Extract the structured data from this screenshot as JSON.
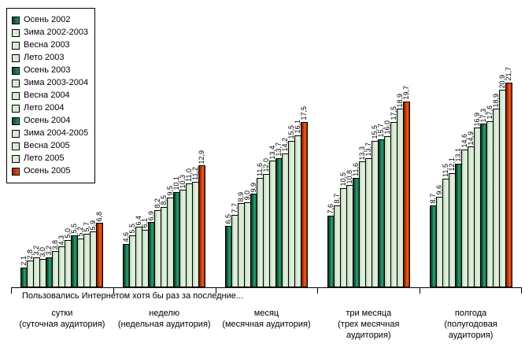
{
  "chart_data": {
    "type": "bar",
    "title": "",
    "axis_note": "Пользовались Интернетом хотя бы раз за последние...",
    "legend_position": "top-left",
    "grid": false,
    "ylim": [
      0,
      22
    ],
    "value_label_style": "rotated 90°, decimal comma",
    "categories": [
      {
        "label": "сутки",
        "sublabel": "(суточная аудитория)"
      },
      {
        "label": "неделю",
        "sublabel": "(недельная аудитория)"
      },
      {
        "label": "месяц",
        "sublabel": "(месячная аудитория)"
      },
      {
        "label": "три месяца",
        "sublabel": "(трех месячная аудитория)"
      },
      {
        "label": "полгода",
        "sublabel": "(полугодовая аудитория)"
      }
    ],
    "series": [
      {
        "name": "Осень 2002",
        "color": "dark",
        "values": [
          2.1,
          4.6,
          6.5,
          7.6,
          8.7
        ]
      },
      {
        "name": "Зима 2002-2003",
        "color": "light",
        "values": [
          2.8,
          5.5,
          7.7,
          8.7,
          9.6
        ]
      },
      {
        "name": "Весна 2003",
        "color": "light",
        "values": [
          3.2,
          6.4,
          8.9,
          10.5,
          11.5
        ]
      },
      {
        "name": "Лето 2003",
        "color": "light",
        "values": [
          3.0,
          6.1,
          9.0,
          10.8,
          12.1
        ]
      },
      {
        "name": "Осень 2003",
        "color": "dark",
        "values": [
          3.2,
          6.9,
          9.9,
          11.6,
          13.1
        ]
      },
      {
        "name": "Зима 2003-2004",
        "color": "light",
        "values": [
          3.8,
          8.2,
          11.6,
          13.3,
          14.6
        ]
      },
      {
        "name": "Весна 2004",
        "color": "light",
        "values": [
          4.3,
          8.5,
          12.0,
          13.7,
          14.9
        ]
      },
      {
        "name": "Лето 2004",
        "color": "light",
        "values": [
          5.0,
          9.5,
          13.4,
          15.5,
          16.9
        ]
      },
      {
        "name": "Осень 2004",
        "color": "dark",
        "values": [
          5.5,
          10.1,
          13.7,
          15.7,
          17.3
        ]
      },
      {
        "name": "Зима 2004-2005",
        "color": "light",
        "values": [
          5.2,
          10.3,
          14.2,
          16.0,
          17.6
        ]
      },
      {
        "name": "Весна 2005",
        "color": "light",
        "values": [
          5.7,
          11.0,
          15.5,
          17.5,
          18.9
        ]
      },
      {
        "name": "Лето 2005",
        "color": "light",
        "values": [
          5.9,
          11.2,
          16.1,
          18.9,
          20.9
        ]
      },
      {
        "name": "Осень 2005",
        "color": "red",
        "values": [
          6.8,
          12.9,
          17.5,
          19.7,
          21.7
        ]
      }
    ],
    "colors": {
      "dark_green": "#156b49",
      "light_green": "#dcedd8",
      "red_orange": "#d94f10",
      "bar_border": "#000000",
      "text": "#000000",
      "background": "#ffffff"
    }
  }
}
